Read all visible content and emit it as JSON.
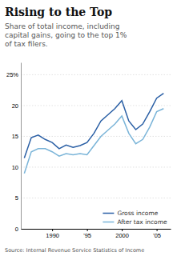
{
  "chart_data": {
    "type": "line",
    "title": "Rising to the Top",
    "subtitle": "Share of total income, including\ncapital gains, going to the top 1%\nof tax filers.",
    "source": "Source: Internal Revenue Service Statistics of Income",
    "x": [
      1986,
      1987,
      1988,
      1989,
      1990,
      1991,
      1992,
      1993,
      1994,
      1995,
      1996,
      1997,
      1998,
      1999,
      2000,
      2001,
      2002,
      2003,
      2004,
      2005,
      2006
    ],
    "series": [
      {
        "name": "Gross income",
        "color": "#2a5fa5",
        "values": [
          11.5,
          14.8,
          15.2,
          14.5,
          14.0,
          13.0,
          13.6,
          13.2,
          13.5,
          14.0,
          15.5,
          17.5,
          18.5,
          19.5,
          20.8,
          17.5,
          16.1,
          17.0,
          19.0,
          21.2,
          22.0
        ]
      },
      {
        "name": "After tax income",
        "color": "#7ab4d8",
        "values": [
          9.0,
          12.5,
          13.0,
          13.0,
          12.5,
          11.8,
          12.2,
          12.0,
          12.2,
          12.0,
          13.5,
          15.0,
          16.0,
          17.0,
          18.3,
          15.5,
          13.8,
          14.5,
          16.5,
          19.0,
          19.5
        ]
      }
    ],
    "xlim": [
      1985.5,
      2007
    ],
    "xticks": [
      1990,
      {
        "value": 1995,
        "label": "'95"
      },
      2000,
      {
        "value": 2005,
        "label": "'05"
      }
    ],
    "ylim": [
      0,
      27
    ],
    "yticks": [
      0,
      5,
      10,
      15,
      20,
      {
        "value": 25,
        "label": "25%"
      }
    ],
    "grid": true,
    "legend": "lower right"
  }
}
